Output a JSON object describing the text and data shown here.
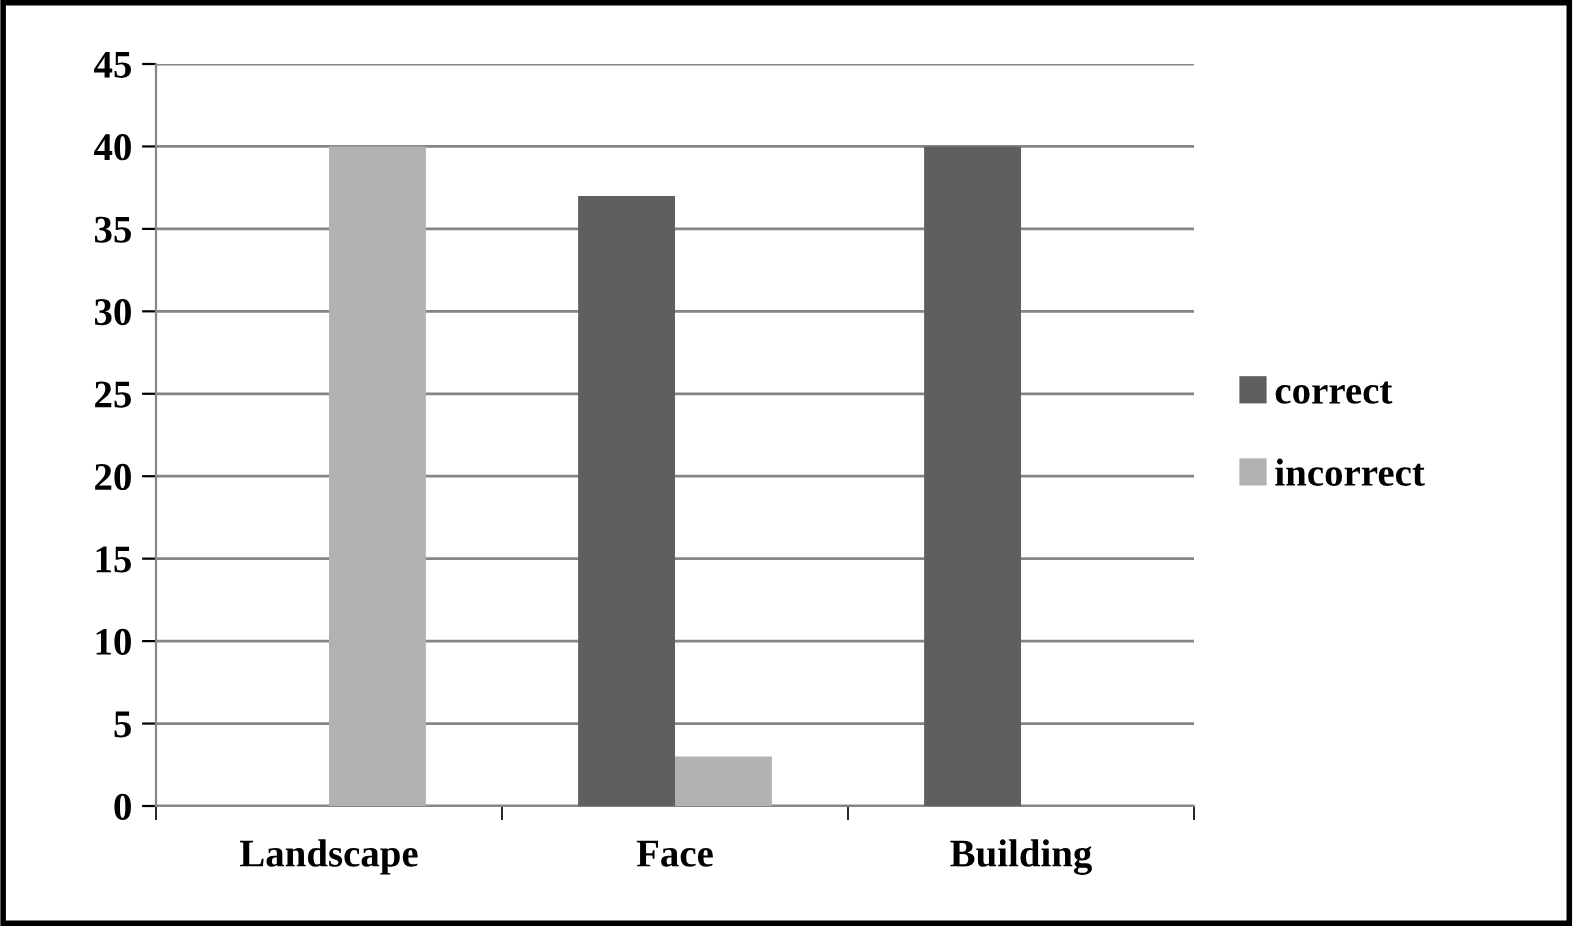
{
  "chart_data": {
    "type": "bar",
    "categories": [
      "Landscape",
      "Face",
      "Building"
    ],
    "series": [
      {
        "name": "correct",
        "color": "#5f5f5f",
        "values": [
          0,
          37,
          40
        ]
      },
      {
        "name": "incorrect",
        "color": "#b2b2b2",
        "values": [
          40,
          3,
          0
        ]
      }
    ],
    "ylim": [
      0,
      45
    ],
    "yticks": [
      0,
      5,
      10,
      15,
      20,
      25,
      30,
      35,
      40,
      45
    ],
    "grid": "y",
    "legend": "right"
  }
}
